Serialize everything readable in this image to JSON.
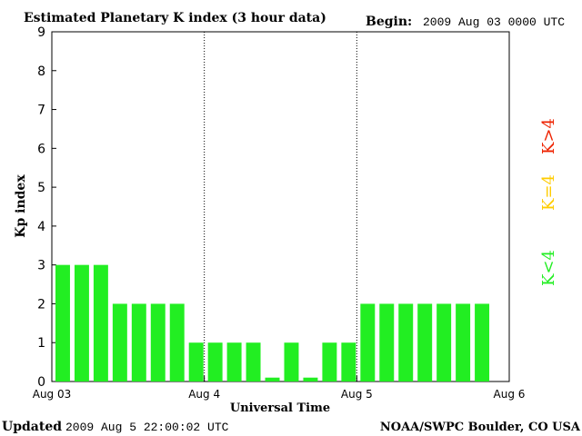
{
  "header": {
    "title": "Estimated Planetary K index (3 hour data)",
    "begin_label": "Begin:",
    "begin_value": "2009 Aug 03 0000 UTC"
  },
  "footer": {
    "updated_label": "Updated",
    "updated_value": "2009 Aug  5 22:00:02 UTC",
    "source": "NOAA/SWPC Boulder, CO USA"
  },
  "legend": {
    "items": [
      {
        "label": "K<4",
        "color": "#22ee22"
      },
      {
        "label": "K=4",
        "color": "#ffcc00"
      },
      {
        "label": "K>4",
        "color": "#ee2200"
      }
    ]
  },
  "chart_data": {
    "type": "bar",
    "ylabel": "Kp index",
    "xlabel": "Universal Time",
    "ylim": [
      0,
      9
    ],
    "yticks": [
      "0",
      "1",
      "2",
      "3",
      "4",
      "5",
      "6",
      "7",
      "8",
      "9"
    ],
    "xtick_labels": [
      "Aug 03",
      "Aug 4",
      "Aug 5",
      "Aug 6"
    ],
    "day_dividers": [
      "Aug 4",
      "Aug 5"
    ],
    "bars_per_day": 8,
    "values": [
      3,
      3,
      3,
      2,
      2,
      2,
      2,
      1,
      1,
      1,
      1,
      0.1,
      1,
      0.1,
      1,
      1,
      2,
      2,
      2,
      2,
      2,
      2,
      2
    ],
    "bar_color": "#22ee22"
  }
}
